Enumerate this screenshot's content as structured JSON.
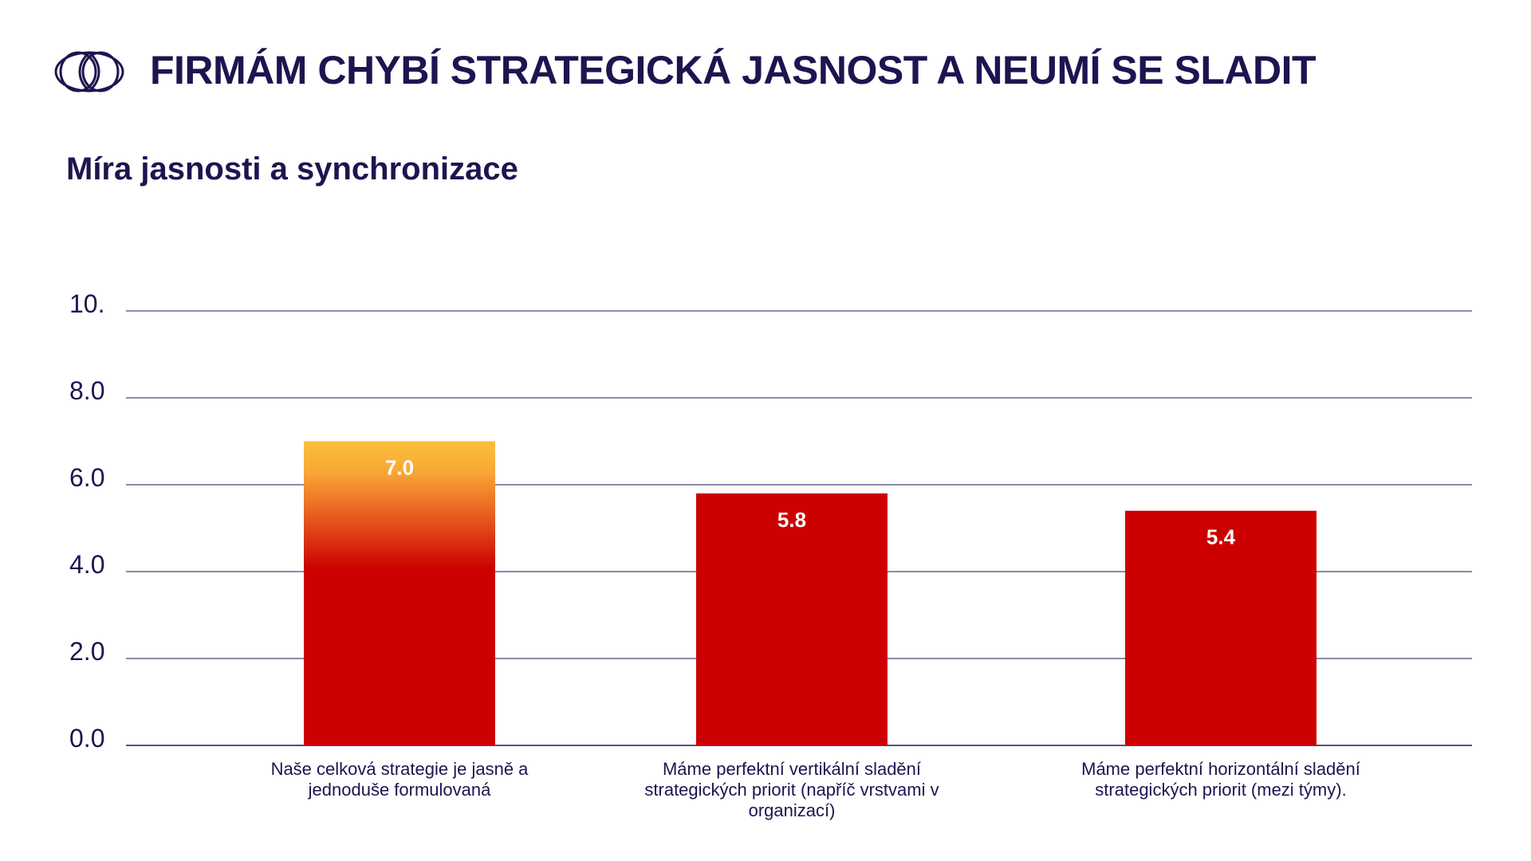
{
  "header": {
    "title": "FIRMÁM CHYBÍ STRATEGICKÁ JASNOST A NEUMÍ SE SLADIT",
    "logo_icon": "intertwined-circles-logo"
  },
  "chart_data": {
    "type": "bar",
    "title": "Míra jasnosti a synchronizace",
    "xlabel": "",
    "ylabel": "",
    "ylim": [
      0,
      10
    ],
    "yticks": [
      0,
      2,
      4,
      6,
      8,
      10
    ],
    "ytick_labels": [
      "0.0",
      "2.0",
      "4.0",
      "6.0",
      "8.0",
      "10."
    ],
    "grid": true,
    "categories": [
      "Naše celková strategie je jasně a jednoduše formulovaná",
      "Máme perfektní vertikální sladění strategických priorit  (napříč vrstvami v organizací)",
      "Máme perfektní horizontální sladění strategických priorit (mezi týmy)."
    ],
    "values": [
      7.0,
      5.8,
      5.4
    ],
    "value_labels": [
      "7.0",
      "5.8",
      "5.4"
    ],
    "colors": {
      "bar": "#cc0000",
      "bar_gradient_top": "#fbbf3a",
      "text": "#1e1450",
      "grid": "#1e1450",
      "value_label": "#ffffff"
    }
  }
}
